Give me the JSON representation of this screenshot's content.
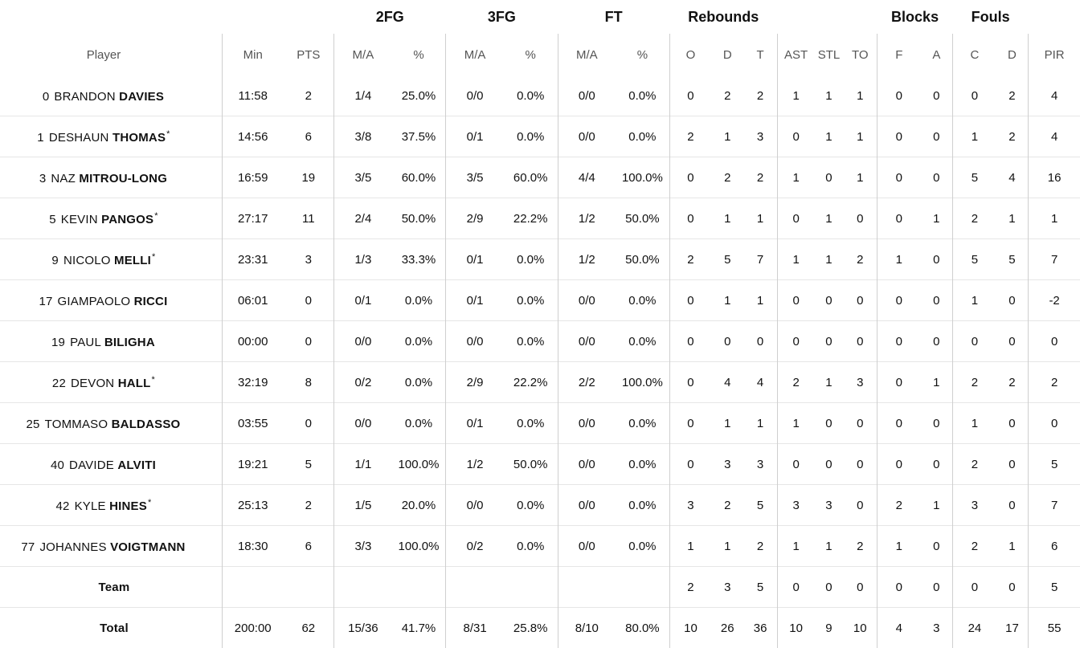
{
  "groups": {
    "fg2": "2FG",
    "fg3": "3FG",
    "ft": "FT",
    "rebounds": "Rebounds",
    "blocks": "Blocks",
    "fouls": "Fouls"
  },
  "columns": {
    "player": "Player",
    "min": "Min",
    "pts": "PTS",
    "fg2_ma": "M/A",
    "fg2_pct": "%",
    "fg3_ma": "M/A",
    "fg3_pct": "%",
    "ft_ma": "M/A",
    "ft_pct": "%",
    "reb_o": "O",
    "reb_d": "D",
    "reb_t": "T",
    "ast": "AST",
    "stl": "STL",
    "to": "TO",
    "blk_f": "F",
    "blk_a": "A",
    "foul_c": "C",
    "foul_d": "D",
    "pir": "PIR"
  },
  "rows": [
    {
      "num": "0",
      "first": "BRANDON",
      "last": "DAVIES",
      "star": "",
      "min": "11:58",
      "pts": "2",
      "fg2_ma": "1/4",
      "fg2_pct": "25.0%",
      "fg3_ma": "0/0",
      "fg3_pct": "0.0%",
      "ft_ma": "0/0",
      "ft_pct": "0.0%",
      "reb_o": "0",
      "reb_d": "2",
      "reb_t": "2",
      "ast": "1",
      "stl": "1",
      "to": "1",
      "blk_f": "0",
      "blk_a": "0",
      "foul_c": "0",
      "foul_d": "2",
      "pir": "4"
    },
    {
      "num": "1",
      "first": "DESHAUN",
      "last": "THOMAS",
      "star": "*",
      "min": "14:56",
      "pts": "6",
      "fg2_ma": "3/8",
      "fg2_pct": "37.5%",
      "fg3_ma": "0/1",
      "fg3_pct": "0.0%",
      "ft_ma": "0/0",
      "ft_pct": "0.0%",
      "reb_o": "2",
      "reb_d": "1",
      "reb_t": "3",
      "ast": "0",
      "stl": "1",
      "to": "1",
      "blk_f": "0",
      "blk_a": "0",
      "foul_c": "1",
      "foul_d": "2",
      "pir": "4"
    },
    {
      "num": "3",
      "first": "NAZ",
      "last": "MITROU-LONG",
      "star": "",
      "min": "16:59",
      "pts": "19",
      "fg2_ma": "3/5",
      "fg2_pct": "60.0%",
      "fg3_ma": "3/5",
      "fg3_pct": "60.0%",
      "ft_ma": "4/4",
      "ft_pct": "100.0%",
      "reb_o": "0",
      "reb_d": "2",
      "reb_t": "2",
      "ast": "1",
      "stl": "0",
      "to": "1",
      "blk_f": "0",
      "blk_a": "0",
      "foul_c": "5",
      "foul_d": "4",
      "pir": "16"
    },
    {
      "num": "5",
      "first": "KEVIN",
      "last": "PANGOS",
      "star": "*",
      "min": "27:17",
      "pts": "11",
      "fg2_ma": "2/4",
      "fg2_pct": "50.0%",
      "fg3_ma": "2/9",
      "fg3_pct": "22.2%",
      "ft_ma": "1/2",
      "ft_pct": "50.0%",
      "reb_o": "0",
      "reb_d": "1",
      "reb_t": "1",
      "ast": "0",
      "stl": "1",
      "to": "0",
      "blk_f": "0",
      "blk_a": "1",
      "foul_c": "2",
      "foul_d": "1",
      "pir": "1"
    },
    {
      "num": "9",
      "first": "NICOLO",
      "last": "MELLI",
      "star": "*",
      "min": "23:31",
      "pts": "3",
      "fg2_ma": "1/3",
      "fg2_pct": "33.3%",
      "fg3_ma": "0/1",
      "fg3_pct": "0.0%",
      "ft_ma": "1/2",
      "ft_pct": "50.0%",
      "reb_o": "2",
      "reb_d": "5",
      "reb_t": "7",
      "ast": "1",
      "stl": "1",
      "to": "2",
      "blk_f": "1",
      "blk_a": "0",
      "foul_c": "5",
      "foul_d": "5",
      "pir": "7"
    },
    {
      "num": "17",
      "first": "GIAMPAOLO",
      "last": "RICCI",
      "star": "",
      "min": "06:01",
      "pts": "0",
      "fg2_ma": "0/1",
      "fg2_pct": "0.0%",
      "fg3_ma": "0/1",
      "fg3_pct": "0.0%",
      "ft_ma": "0/0",
      "ft_pct": "0.0%",
      "reb_o": "0",
      "reb_d": "1",
      "reb_t": "1",
      "ast": "0",
      "stl": "0",
      "to": "0",
      "blk_f": "0",
      "blk_a": "0",
      "foul_c": "1",
      "foul_d": "0",
      "pir": "-2"
    },
    {
      "num": "19",
      "first": "PAUL",
      "last": "BILIGHA",
      "star": "",
      "min": "00:00",
      "pts": "0",
      "fg2_ma": "0/0",
      "fg2_pct": "0.0%",
      "fg3_ma": "0/0",
      "fg3_pct": "0.0%",
      "ft_ma": "0/0",
      "ft_pct": "0.0%",
      "reb_o": "0",
      "reb_d": "0",
      "reb_t": "0",
      "ast": "0",
      "stl": "0",
      "to": "0",
      "blk_f": "0",
      "blk_a": "0",
      "foul_c": "0",
      "foul_d": "0",
      "pir": "0"
    },
    {
      "num": "22",
      "first": "DEVON",
      "last": "HALL",
      "star": "*",
      "min": "32:19",
      "pts": "8",
      "fg2_ma": "0/2",
      "fg2_pct": "0.0%",
      "fg3_ma": "2/9",
      "fg3_pct": "22.2%",
      "ft_ma": "2/2",
      "ft_pct": "100.0%",
      "reb_o": "0",
      "reb_d": "4",
      "reb_t": "4",
      "ast": "2",
      "stl": "1",
      "to": "3",
      "blk_f": "0",
      "blk_a": "1",
      "foul_c": "2",
      "foul_d": "2",
      "pir": "2"
    },
    {
      "num": "25",
      "first": "TOMMASO",
      "last": "BALDASSO",
      "star": "",
      "min": "03:55",
      "pts": "0",
      "fg2_ma": "0/0",
      "fg2_pct": "0.0%",
      "fg3_ma": "0/1",
      "fg3_pct": "0.0%",
      "ft_ma": "0/0",
      "ft_pct": "0.0%",
      "reb_o": "0",
      "reb_d": "1",
      "reb_t": "1",
      "ast": "1",
      "stl": "0",
      "to": "0",
      "blk_f": "0",
      "blk_a": "0",
      "foul_c": "1",
      "foul_d": "0",
      "pir": "0"
    },
    {
      "num": "40",
      "first": "DAVIDE",
      "last": "ALVITI",
      "star": "",
      "min": "19:21",
      "pts": "5",
      "fg2_ma": "1/1",
      "fg2_pct": "100.0%",
      "fg3_ma": "1/2",
      "fg3_pct": "50.0%",
      "ft_ma": "0/0",
      "ft_pct": "0.0%",
      "reb_o": "0",
      "reb_d": "3",
      "reb_t": "3",
      "ast": "0",
      "stl": "0",
      "to": "0",
      "blk_f": "0",
      "blk_a": "0",
      "foul_c": "2",
      "foul_d": "0",
      "pir": "5"
    },
    {
      "num": "42",
      "first": "KYLE",
      "last": "HINES",
      "star": "*",
      "min": "25:13",
      "pts": "2",
      "fg2_ma": "1/5",
      "fg2_pct": "20.0%",
      "fg3_ma": "0/0",
      "fg3_pct": "0.0%",
      "ft_ma": "0/0",
      "ft_pct": "0.0%",
      "reb_o": "3",
      "reb_d": "2",
      "reb_t": "5",
      "ast": "3",
      "stl": "3",
      "to": "0",
      "blk_f": "2",
      "blk_a": "1",
      "foul_c": "3",
      "foul_d": "0",
      "pir": "7"
    },
    {
      "num": "77",
      "first": "JOHANNES",
      "last": "VOIGTMANN",
      "star": "",
      "min": "18:30",
      "pts": "6",
      "fg2_ma": "3/3",
      "fg2_pct": "100.0%",
      "fg3_ma": "0/2",
      "fg3_pct": "0.0%",
      "ft_ma": "0/0",
      "ft_pct": "0.0%",
      "reb_o": "1",
      "reb_d": "1",
      "reb_t": "2",
      "ast": "1",
      "stl": "1",
      "to": "2",
      "blk_f": "1",
      "blk_a": "0",
      "foul_c": "2",
      "foul_d": "1",
      "pir": "6"
    }
  ],
  "team": {
    "label": "Team",
    "min": "",
    "pts": "",
    "fg2_ma": "",
    "fg2_pct": "",
    "fg3_ma": "",
    "fg3_pct": "",
    "ft_ma": "",
    "ft_pct": "",
    "reb_o": "2",
    "reb_d": "3",
    "reb_t": "5",
    "ast": "0",
    "stl": "0",
    "to": "0",
    "blk_f": "0",
    "blk_a": "0",
    "foul_c": "0",
    "foul_d": "0",
    "pir": "5"
  },
  "total": {
    "label": "Total",
    "min": "200:00",
    "pts": "62",
    "fg2_ma": "15/36",
    "fg2_pct": "41.7%",
    "fg3_ma": "8/31",
    "fg3_pct": "25.8%",
    "ft_ma": "8/10",
    "ft_pct": "80.0%",
    "reb_o": "10",
    "reb_d": "26",
    "reb_t": "36",
    "ast": "10",
    "stl": "9",
    "to": "10",
    "blk_f": "4",
    "blk_a": "3",
    "foul_c": "24",
    "foul_d": "17",
    "pir": "55"
  }
}
